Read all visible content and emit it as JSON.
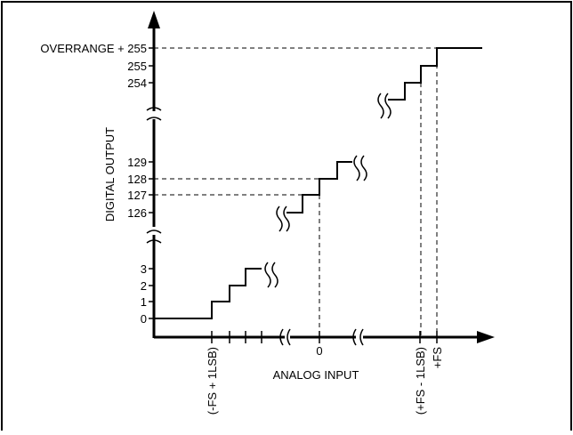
{
  "figure": {
    "y_axis_title": "DIGITAL OUTPUT",
    "x_axis_title": "ANALOG INPUT",
    "y_labels": {
      "overrange": "OVERRANGE + 255",
      "c255": "255",
      "c254": "254",
      "c129": "129",
      "c128": "128",
      "c127": "127",
      "c126": "126",
      "c3": "3",
      "c2": "2",
      "c1": "1",
      "c0": "0"
    },
    "x_labels": {
      "zero": "0",
      "neg_fs": "(-FS + 1LSB)",
      "pos_fs_minus": "(+FS - 1LSB)",
      "pos_fs": "+FS"
    }
  }
}
